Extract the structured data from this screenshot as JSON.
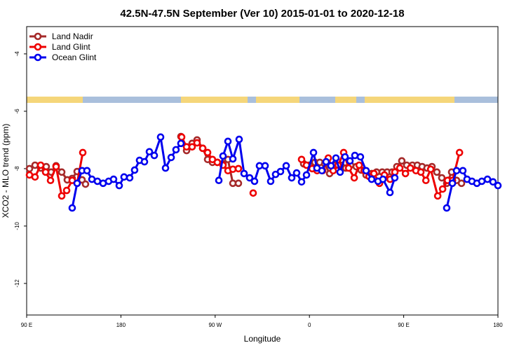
{
  "chart_data": {
    "type": "line",
    "title": "42.5N-47.5N September (Ver 10)   2015-01-01 to 2020-12-18",
    "x_label": "Longitude",
    "y_label": "XCO2 - MLO trend (ppm)",
    "xlim": [
      90,
      540
    ],
    "ylim": [
      -13.1,
      -3.05
    ],
    "xticks": [
      {
        "value": 90,
        "label": "90 E"
      },
      180,
      {
        "value": 270,
        "label": "90 W"
      },
      {
        "value": 360,
        "label": "0"
      },
      {
        "value": 450,
        "label": "90 E"
      },
      {
        "value": 540,
        "label": "180"
      }
    ],
    "yticks": [
      -12,
      -10,
      -8,
      -6,
      -4
    ],
    "legend": "upper left",
    "series": [
      {
        "name": "Land Nadir",
        "color": "#a52a2a",
        "x": [
          92.7,
          98,
          103.4,
          108.7,
          113.4,
          118.1,
          123.5,
          128.8,
          133.5,
          138.2,
          142.9,
          146.2,
          null,
          237.3,
          242.7,
          248,
          252.7,
          258.1,
          262.8,
          267.4,
          272.1,
          277.5,
          282.2,
          286.9,
          292.2,
          null,
          354.5,
          359.8,
          365.2,
          369.9,
          374.6,
          379.3,
          384.6,
          390,
          394.7,
          399.3,
          404.7,
          409.4,
          414.1,
          419.4,
          424.1,
          429.5,
          434.2,
          438.9,
          443.5,
          448.2,
          452.9,
          458.3,
          463,
          467.6,
          472.3,
          477,
          481.7,
          486.4,
          491.1,
          495.8,
          500.5,
          505.2
        ],
        "values": [
          -8.0,
          -7.88,
          -7.98,
          -7.93,
          -8.12,
          -7.9,
          -8.12,
          -8.39,
          -8.34,
          -8.1,
          -8.39,
          -8.54,
          null,
          -6.88,
          -7.37,
          -7.12,
          -7.0,
          -7.29,
          -7.68,
          -7.78,
          -7.78,
          -7.83,
          -7.68,
          -8.51,
          -8.51,
          null,
          -7.83,
          -7.88,
          -7.78,
          -7.78,
          -7.83,
          -8.17,
          -7.88,
          -7.88,
          -7.98,
          -7.88,
          -7.93,
          -8.05,
          -8.22,
          -8.17,
          -8.12,
          -8.12,
          -8.12,
          -8.12,
          -7.93,
          -7.73,
          -7.88,
          -7.88,
          -7.88,
          -7.93,
          -7.98,
          -7.93,
          -8.12,
          -8.32,
          -8.51,
          -8.12,
          -8.41,
          -8.51
        ]
      },
      {
        "name": "Land Glint",
        "color": "#ee0000",
        "x": [
          92.7,
          98,
          103.4,
          108.1,
          112.8,
          118.1,
          123.5,
          128.2,
          133.5,
          138.2,
          143.6,
          null,
          238,
          242.7,
          248,
          252.7,
          258.1,
          262.8,
          267.4,
          272.1,
          277.5,
          282.2,
          286.9,
          292.2,
          null,
          306.3,
          null,
          352.5,
          357.2,
          362.6,
          367.3,
          372.6,
          378,
          382.7,
          387.4,
          392.7,
          397.4,
          402.8,
          407.5,
          412.2,
          416.9,
          421.6,
          426.9,
          431.6,
          437,
          441.6,
          446.3,
          451.7,
          456.4,
          461.7,
          466.4,
          471.2,
          475.8,
          482.5,
          487.2,
          491.9,
          496.6,
          503.3
        ],
        "values": [
          -8.22,
          -8.29,
          -7.88,
          -8.12,
          -8.41,
          -7.93,
          -8.95,
          -8.76,
          -8.41,
          -8.51,
          -7.44,
          null,
          -6.9,
          -7.24,
          -7.24,
          -7.1,
          -7.29,
          -7.44,
          -7.68,
          -7.78,
          -7.88,
          -8.07,
          -8.02,
          -8.0,
          null,
          -8.85,
          null,
          -7.68,
          -7.88,
          -8.0,
          -8.07,
          -8.07,
          -7.63,
          -8.07,
          -7.88,
          -7.44,
          -7.98,
          -8.32,
          -7.88,
          -8.07,
          -8.27,
          -8.17,
          -8.51,
          -8.22,
          -8.37,
          -8.12,
          -7.98,
          -8.17,
          -7.98,
          -8.07,
          -8.12,
          -8.41,
          -8.02,
          -8.95,
          -8.71,
          -8.41,
          -8.41,
          -7.44
        ]
      },
      {
        "name": "Ocean Glint",
        "color": "#0000ee",
        "x": [
          133.5,
          138.2,
          142.9,
          147.6,
          152.3,
          157.6,
          163,
          168.3,
          173,
          178.4,
          183,
          188.4,
          193.1,
          197.8,
          202.5,
          207.2,
          211.9,
          217.9,
          222.6,
          228,
          232.6,
          237.3,
          null,
          273.5,
          277.5,
          282.2,
          286.9,
          292.9,
          297.6,
          302.9,
          307.6,
          312.3,
          317.7,
          323,
          327.7,
          332.4,
          337.8,
          343.1,
          347.8,
          352.5,
          357.2,
          363.9,
          367.2,
          371.9,
          375.9,
          380.6,
          385.3,
          389.3,
          394,
          398.7,
          403.4,
          408.7,
          414.1,
          419.4,
          425.5,
          430.2,
          436.9,
          441.5,
          null,
          491.1,
          496.5,
          500.5,
          506.5,
          510.5,
          515.2,
          519.9,
          524.6,
          530,
          535.3,
          540
        ],
        "values": [
          -9.37,
          -8.51,
          -8.07,
          -8.07,
          -8.37,
          -8.44,
          -8.51,
          -8.44,
          -8.37,
          -8.59,
          -8.29,
          -8.32,
          -8.05,
          -7.71,
          -7.76,
          -7.41,
          -7.54,
          -6.9,
          -7.98,
          -7.61,
          -7.34,
          -7.12,
          null,
          -8.41,
          -7.56,
          -7.05,
          -7.66,
          -6.98,
          -8.17,
          -8.32,
          -8.44,
          -7.9,
          -7.9,
          -8.44,
          -8.2,
          -8.1,
          -7.9,
          -8.32,
          -8.15,
          -8.46,
          -8.22,
          -7.44,
          -7.98,
          -8.07,
          -7.76,
          -7.9,
          -7.63,
          -8.12,
          -7.59,
          -7.73,
          -7.54,
          -7.59,
          -8.07,
          -8.37,
          -8.44,
          -8.37,
          -8.83,
          -8.32,
          null,
          -9.37,
          -8.51,
          -8.07,
          -8.07,
          -8.37,
          -8.44,
          -8.51,
          -8.44,
          -8.37,
          -8.46,
          -8.59
        ]
      }
    ]
  }
}
